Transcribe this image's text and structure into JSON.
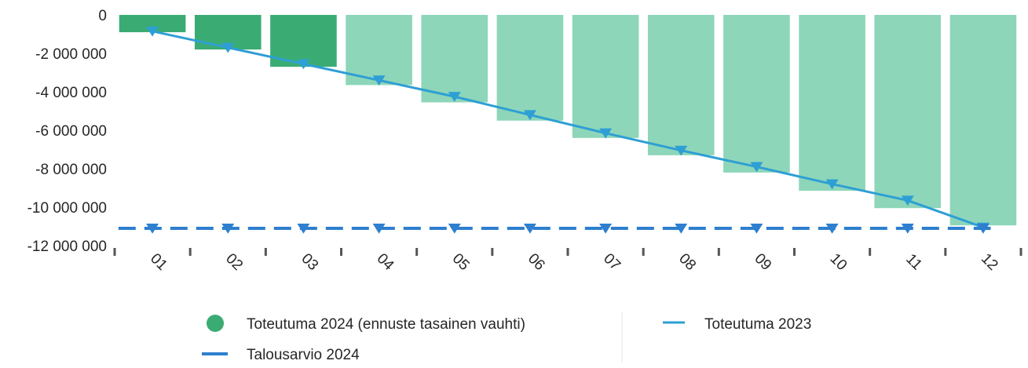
{
  "chart_data": {
    "type": "bar",
    "categories": [
      "01",
      "02",
      "03",
      "04",
      "05",
      "06",
      "07",
      "08",
      "09",
      "10",
      "11",
      "12"
    ],
    "y_ticks": [
      {
        "value": 0,
        "label": "0"
      },
      {
        "value": -2000000,
        "label": "-2 000 000"
      },
      {
        "value": -4000000,
        "label": "-4 000 000"
      },
      {
        "value": -6000000,
        "label": "-6 000 000"
      },
      {
        "value": -8000000,
        "label": "-8 000 000"
      },
      {
        "value": -10000000,
        "label": "-10 000 000"
      },
      {
        "value": -12000000,
        "label": "-12 000 000"
      }
    ],
    "ylim": [
      -12000000,
      0
    ],
    "grid": false,
    "legend_position": "bottom",
    "series": [
      {
        "name": "Toteutuma 2024 (ennuste tasainen vauhti)",
        "type": "bar",
        "values": [
          -900000,
          -1800000,
          -2700000,
          -3650000,
          -4550000,
          -5500000,
          -6400000,
          -7300000,
          -8200000,
          -9150000,
          -10050000,
          -10950000
        ],
        "actual_months": 3,
        "color_actual": "#3aac73",
        "color_forecast": "#8dd6b9"
      },
      {
        "name": "Toteutuma 2023",
        "type": "line",
        "values": [
          -850000,
          -1700000,
          -2550000,
          -3400000,
          -4250000,
          -5200000,
          -6150000,
          -7050000,
          -7900000,
          -8800000,
          -9650000,
          -11050000
        ],
        "color": "#2e9fd4",
        "marker": "triangle-down"
      },
      {
        "name": "Talousarvio 2024",
        "type": "line",
        "style": "dashed",
        "values": [
          -11100000,
          -11100000,
          -11100000,
          -11100000,
          -11100000,
          -11100000,
          -11100000,
          -11100000,
          -11100000,
          -11100000,
          -11100000,
          -11100000
        ],
        "color": "#2e7fcf",
        "marker": "triangle-down"
      }
    ]
  },
  "legend": {
    "items": [
      {
        "label": "Toteutuma 2024 (ennuste tasainen vauhti)",
        "icon": "circle"
      },
      {
        "label": "Toteutuma 2023",
        "icon": "line"
      },
      {
        "label": "Talousarvio 2024",
        "icon": "line"
      }
    ],
    "divider_color": "#e6e6e6"
  },
  "axis_color": "#555555"
}
